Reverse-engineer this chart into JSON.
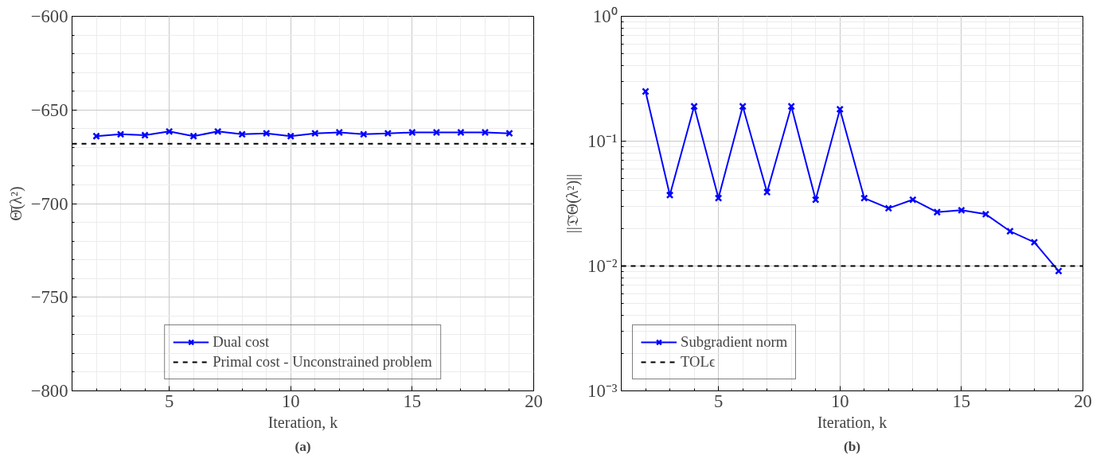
{
  "chart_data": [
    {
      "type": "line",
      "xlabel": "Iteration, k",
      "ylabel": "Θ̄(λ²)",
      "x": [
        2,
        3,
        4,
        5,
        6,
        7,
        8,
        9,
        10,
        11,
        12,
        13,
        14,
        15,
        16,
        17,
        18,
        19
      ],
      "series": [
        {
          "name": "Dual cost",
          "color": "#0000ff",
          "values": [
            -664,
            -663,
            -663.5,
            -661.5,
            -664,
            -661.5,
            -663,
            -662.5,
            -664,
            -662.5,
            -662,
            -663,
            -662.5,
            -662,
            -662,
            -662,
            -662,
            -662.5
          ]
        }
      ],
      "ref_lines": [
        {
          "axis": "y",
          "value": -668,
          "label": "Primal cost - Unconstrained problem",
          "color": "#000000",
          "line_style": "dashed"
        }
      ],
      "xlim": [
        1,
        20
      ],
      "xticks": [
        5,
        10,
        15,
        20
      ],
      "ylim": [
        -800,
        -600
      ],
      "yticks": [
        -800,
        -750,
        -700,
        -650,
        -600
      ],
      "grid": true,
      "legend": "bottom",
      "marker": "cross",
      "line_style": "solid",
      "annotations": [
        "(a)"
      ]
    },
    {
      "type": "line",
      "xlabel": "Iteration, k",
      "ylabel": "||𝔇̄Θ(λ²)||",
      "x": [
        2,
        3,
        4,
        5,
        6,
        7,
        8,
        9,
        10,
        11,
        12,
        13,
        14,
        15,
        16,
        17,
        18,
        19
      ],
      "series": [
        {
          "name": "Subgradient norm",
          "color": "#0000ff",
          "values": [
            0.25,
            0.037,
            0.19,
            0.035,
            0.19,
            0.039,
            0.19,
            0.034,
            0.18,
            0.035,
            0.029,
            0.034,
            0.027,
            0.028,
            0.026,
            0.019,
            0.0155,
            0.0091
          ]
        }
      ],
      "ref_lines": [
        {
          "axis": "y",
          "value": 0.01,
          "label": "TOLϵ",
          "color": "#000000",
          "line_style": "dashed"
        }
      ],
      "xlim": [
        1,
        20
      ],
      "xticks": [
        5,
        10,
        15,
        20
      ],
      "ylim": [
        0.001,
        1
      ],
      "yticks": [
        {
          "value": 0.001,
          "label": "10⁻³"
        },
        {
          "value": 0.01,
          "label": "10⁻²"
        },
        {
          "value": 0.1,
          "label": "10⁻¹"
        },
        {
          "value": 1,
          "label": "10⁰"
        }
      ],
      "log": "y",
      "grid": true,
      "legend": "bottom left",
      "marker": "cross",
      "line_style": "solid",
      "annotations": [
        "(b)"
      ]
    }
  ]
}
